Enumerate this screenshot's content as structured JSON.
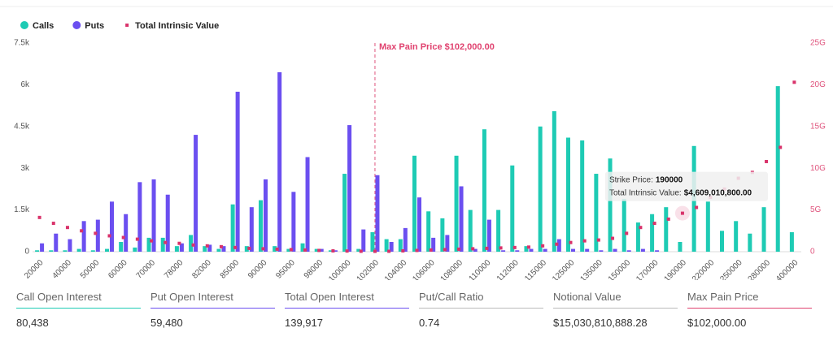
{
  "chart_data": {
    "type": "bar",
    "categories": [
      "20000",
      null,
      "40000",
      null,
      "50000",
      null,
      "60000",
      null,
      "70000",
      null,
      "78000",
      null,
      "82000",
      null,
      "85000",
      null,
      "90000",
      null,
      "95000",
      null,
      "98000",
      null,
      "100000",
      null,
      "102000",
      null,
      "104000",
      null,
      "106000",
      null,
      "108000",
      null,
      "110000",
      null,
      "112000",
      null,
      "115000",
      null,
      "125000",
      null,
      "135000",
      null,
      "150000",
      null,
      "170000",
      null,
      "190000",
      null,
      "220000",
      null,
      "250000",
      null,
      "280000",
      null,
      "400000"
    ],
    "series": [
      {
        "name": "Calls",
        "color": "#1ecbb4",
        "values": [
          50,
          50,
          50,
          100,
          50,
          100,
          350,
          150,
          500,
          500,
          200,
          600,
          200,
          100,
          1700,
          200,
          1850,
          200,
          100,
          300,
          100,
          50,
          2800,
          100,
          700,
          450,
          450,
          3450,
          1450,
          1200,
          3450,
          1500,
          4400,
          1500,
          3100,
          200,
          4500,
          5050,
          4100,
          4000,
          2800,
          3350,
          1900,
          1050,
          1350,
          1600,
          350,
          3800,
          1800,
          750,
          1100,
          650,
          1600,
          5950,
          700
        ]
      },
      {
        "name": "Puts",
        "color": "#6b4ff0",
        "values": [
          300,
          650,
          450,
          1100,
          1150,
          1800,
          1350,
          2500,
          2600,
          2050,
          300,
          4200,
          250,
          200,
          5750,
          1600,
          2600,
          6450,
          2150,
          3400,
          100,
          50,
          4550,
          800,
          2750,
          350,
          850,
          1950,
          500,
          600,
          2350,
          100,
          1150,
          50,
          50,
          100,
          100,
          450,
          100,
          100,
          50,
          100,
          50,
          100,
          50,
          0,
          0,
          0,
          0,
          0,
          0,
          0,
          0,
          0,
          0
        ]
      },
      {
        "name": "Total Intrinsic Value",
        "color": "#d9336b",
        "axis": "y2",
        "values": [
          4100000000,
          3400000000,
          2900000000,
          2500000000,
          2200000000,
          1900000000,
          1700000000,
          1500000000,
          1300000000,
          1100000000,
          1000000000,
          800000000,
          700000000,
          600000000,
          500000000,
          400000000,
          350000000,
          300000000,
          250000000,
          200000000,
          150000000,
          100000000,
          80000000,
          50000000,
          40000000,
          50000000,
          100000000,
          150000000,
          200000000,
          250000000,
          300000000,
          350000000,
          400000000,
          450000000,
          500000000,
          550000000,
          700000000,
          900000000,
          1100000000,
          1300000000,
          1400000000,
          1600000000,
          2200000000,
          2900000000,
          3400000000,
          3900000000,
          4609010800,
          5300000000,
          6500000000,
          7500000000,
          8800000000,
          9500000000,
          10800000000,
          12500000000,
          20300000000
        ]
      }
    ],
    "ylim": [
      0,
      7500
    ],
    "yticks": [
      0,
      {
        "value": 1500,
        "label": "1.5k"
      },
      {
        "value": 3000,
        "label": "3k"
      },
      {
        "value": 4500,
        "label": "4.5k"
      },
      {
        "value": 6000,
        "label": "6k"
      },
      {
        "value": 7500,
        "label": "7.5k"
      }
    ],
    "y2lim": [
      0,
      25000000000
    ],
    "y2ticks": [
      0,
      {
        "value": 5000000000,
        "label": "5G"
      },
      {
        "value": 10000000000,
        "label": "10G"
      },
      {
        "value": 15000000000,
        "label": "15G"
      },
      {
        "value": 20000000000,
        "label": "20G"
      },
      {
        "value": 25000000000,
        "label": "25G"
      }
    ],
    "grid": false,
    "annotation": {
      "text": "Max Pain Price $102,000.00",
      "category": "102000"
    },
    "tooltip": {
      "strike_label": "Strike Price:",
      "strike": "190000",
      "value_label": "Total Intrinsic Value:",
      "value": "$4,609,010,800.00"
    }
  },
  "stats": [
    {
      "label": "Call Open Interest",
      "value": "80,438",
      "color": "#1ecbb4"
    },
    {
      "label": "Put Open Interest",
      "value": "59,480",
      "color": "#6b4ff0"
    },
    {
      "label": "Total Open Interest",
      "value": "139,917",
      "color": "#6b4ff0"
    },
    {
      "label": "Put/Call Ratio",
      "value": "0.74",
      "color": "#bbbbbb"
    },
    {
      "label": "Notional Value",
      "value": "$15,030,810,888.28",
      "color": "#bbbbbb"
    },
    {
      "label": "Max Pain Price",
      "value": "$102,000.00",
      "color": "#e0426f"
    }
  ]
}
